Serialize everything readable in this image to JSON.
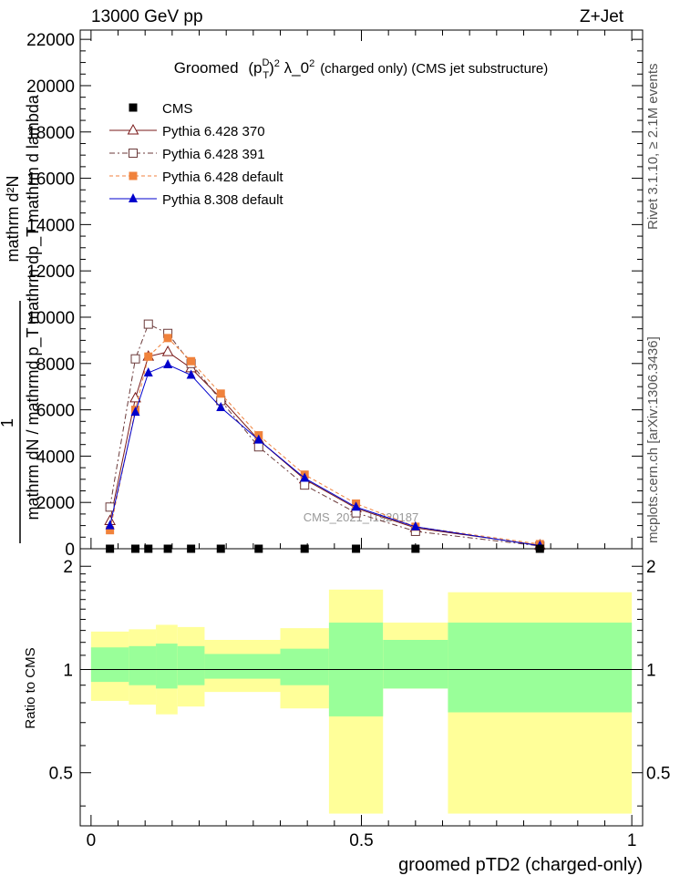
{
  "header": {
    "energy": "13000 GeV pp",
    "process": "Z+Jet"
  },
  "side_labels": {
    "rivet": "Rivet 3.1.10, ≥ 2.1M events",
    "mcplots": "mcplots.cern.ch [arXiv:1306.3436]"
  },
  "watermark": "CMS_2021_I1920187",
  "colors": {
    "cms": "#000000",
    "p370": "#7a1a1a",
    "p391": "#6b3a3a",
    "p6def": "#f0823c",
    "p8def": "#0000cc",
    "band_inner": "#99ff99",
    "band_outer": "#ffff99"
  },
  "chart_data": [
    {
      "type": "scatter",
      "title": "Groomed (p_T^D)^2 λ_0^2 (charged only) (CMS jet substructure)",
      "title_parts": {
        "pre": "Groomed",
        "main": "(p",
        "sup1": "D",
        "sub1": "T",
        "close": ")",
        "sup2": "2",
        "lambda": " λ_0",
        "sup3": "2",
        "post": "(charged only) (CMS jet substructure)"
      },
      "ylabel_top": "mathrm d²N",
      "ylabel_bottom": "mathrm dp_T mathrm d lambda",
      "ylabel_frac_top": "1",
      "ylabel_frac_bottom": "mathrm dN / mathrmd p_T",
      "xlim": [
        -0.02,
        1.02
      ],
      "ylim": [
        0,
        22400
      ],
      "yticks": [
        0,
        2000,
        4000,
        6000,
        8000,
        10000,
        12000,
        14000,
        16000,
        18000,
        20000,
        22000
      ],
      "ytick_labels": [
        "0",
        "2000",
        "4000",
        "6000",
        "8000",
        "10000",
        "12000",
        "14000",
        "16000",
        "18000",
        "20000",
        "22000"
      ],
      "x": [
        0.035,
        0.082,
        0.106,
        0.142,
        0.185,
        0.24,
        0.31,
        0.395,
        0.49,
        0.6,
        0.83
      ],
      "series": [
        {
          "name": "CMS",
          "key": "cms",
          "marker": "square-filled",
          "values": [
            0,
            0,
            0,
            0,
            0,
            0,
            0,
            0,
            0,
            0,
            0
          ]
        },
        {
          "name": "Pythia 6.428 370",
          "key": "p370",
          "marker": "triangle-open",
          "dash": "",
          "values": [
            1200,
            6500,
            8300,
            8500,
            7800,
            6500,
            4700,
            3000,
            1750,
            900,
            150
          ]
        },
        {
          "name": "Pythia 6.428 391",
          "key": "p391",
          "marker": "square-open",
          "dash": "6,3,2,3",
          "values": [
            1800,
            8200,
            9700,
            9300,
            8000,
            6400,
            4400,
            2750,
            1550,
            750,
            120
          ]
        },
        {
          "name": "Pythia 6.428 default",
          "key": "p6def",
          "marker": "square-filled",
          "dash": "4,3",
          "values": [
            800,
            6000,
            8300,
            9100,
            8100,
            6700,
            4900,
            3200,
            1950,
            950,
            200
          ]
        },
        {
          "name": "Pythia 8.308 default",
          "key": "p8def",
          "marker": "triangle-filled",
          "dash": "",
          "values": [
            1000,
            5900,
            7600,
            7950,
            7500,
            6100,
            4700,
            3050,
            1800,
            950,
            130
          ]
        }
      ]
    },
    {
      "type": "area",
      "ylabel": "Ratio to CMS",
      "xlabel": "groomed pTD2 (charged-only)",
      "xlim": [
        -0.02,
        1.02
      ],
      "ylim": [
        0.35,
        2.25
      ],
      "yticks": [
        0.5,
        1,
        2
      ],
      "ytick_labels": [
        "0.5",
        "1",
        "2"
      ],
      "xticks": [
        0,
        0.5,
        1
      ],
      "xtick_labels": [
        "0",
        "0.5",
        "1"
      ],
      "bins": [
        {
          "x0": 0.0,
          "x1": 0.07,
          "inner": [
            0.92,
            1.16
          ],
          "outer": [
            0.81,
            1.29
          ]
        },
        {
          "x0": 0.07,
          "x1": 0.12,
          "inner": [
            0.9,
            1.17
          ],
          "outer": [
            0.79,
            1.31
          ]
        },
        {
          "x0": 0.12,
          "x1": 0.16,
          "inner": [
            0.88,
            1.19
          ],
          "outer": [
            0.74,
            1.35
          ]
        },
        {
          "x0": 0.16,
          "x1": 0.21,
          "inner": [
            0.9,
            1.17
          ],
          "outer": [
            0.78,
            1.33
          ]
        },
        {
          "x0": 0.21,
          "x1": 0.35,
          "inner": [
            0.94,
            1.11
          ],
          "outer": [
            0.86,
            1.22
          ]
        },
        {
          "x0": 0.35,
          "x1": 0.44,
          "inner": [
            0.9,
            1.15
          ],
          "outer": [
            0.77,
            1.32
          ]
        },
        {
          "x0": 0.44,
          "x1": 0.54,
          "inner": [
            0.73,
            1.37
          ],
          "outer": [
            0.38,
            1.71
          ]
        },
        {
          "x0": 0.54,
          "x1": 0.66,
          "inner": [
            0.88,
            1.22
          ],
          "outer": [
            0.88,
            1.37
          ]
        },
        {
          "x0": 0.66,
          "x1": 1.0,
          "inner": [
            0.75,
            1.37
          ],
          "outer": [
            0.38,
            1.68
          ]
        }
      ]
    }
  ]
}
